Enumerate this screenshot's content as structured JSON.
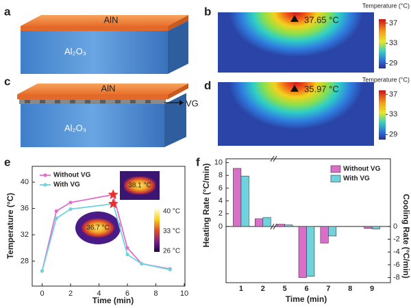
{
  "panels": {
    "a": {
      "label": "a",
      "top_layer": "AlN",
      "substrate": "Al₂O₃"
    },
    "b": {
      "label": "b",
      "legend_title": "Temperature (°C)",
      "annotation": "37.65 °C",
      "clim": [
        28.0,
        37.8
      ],
      "colorbar_ticks": [
        37,
        33,
        29
      ]
    },
    "c": {
      "label": "c",
      "top_layer": "AlN",
      "middle_layer": "VG",
      "substrate": "Al₂O₃"
    },
    "d": {
      "label": "d",
      "legend_title": "Temperature (°C)",
      "annotation": "35.97 °C",
      "clim": [
        28.0,
        37.8
      ],
      "colorbar_ticks": [
        37,
        33,
        29
      ]
    }
  },
  "chart_data": [
    {
      "type": "line",
      "label": "e",
      "x_label": "Time (min)",
      "y_label": "Temperature (°C)",
      "x": [
        0,
        1,
        2,
        5,
        6,
        7,
        9
      ],
      "series": [
        {
          "name": "Without VG",
          "color": "#e06fcb",
          "values": [
            26.5,
            35.6,
            36.9,
            38.1,
            30.0,
            27.6,
            26.8
          ]
        },
        {
          "name": "With VG",
          "color": "#6fd3dc",
          "values": [
            26.5,
            34.5,
            35.9,
            36.7,
            29.0,
            27.6,
            26.7
          ]
        }
      ],
      "xlim": [
        -0.7,
        10.05
      ],
      "xticks": [
        0,
        2,
        4,
        6,
        8,
        10
      ],
      "ylim": [
        24.2,
        42.4
      ],
      "yticks": [
        28,
        32,
        36,
        40
      ],
      "legend": "upper-left",
      "inset_annotations": [
        "38.1 °C",
        "36.7 °C"
      ],
      "inset_colorbar_labels": [
        "40 °C",
        "33 °C",
        "26 °C"
      ]
    },
    {
      "type": "bar",
      "label": "f",
      "x_label": "Time (min)",
      "y_label": "Heating Rate (°C/min)",
      "y2_label": "Cooling Rate (°C/min)",
      "categories": [
        "1",
        "2",
        "5",
        "6",
        "7",
        "8",
        "9"
      ],
      "series": [
        {
          "name": "Without VG",
          "color": "#d870c8",
          "values": [
            9.1,
            1.2,
            0.35,
            -8.0,
            -2.6,
            null,
            -0.3
          ]
        },
        {
          "name": "With VG",
          "color": "#70d2dc",
          "values": [
            7.9,
            1.4,
            0.25,
            -7.8,
            -1.5,
            null,
            -0.4
          ]
        }
      ],
      "ylim": [
        -8.8,
        10.6
      ],
      "yticks": [
        0,
        2,
        4,
        6,
        8,
        10
      ],
      "y2lim": [
        -8.8,
        10.6
      ],
      "y2ticks": [
        0,
        -2,
        -4,
        -6,
        -8
      ],
      "legend": "upper-right"
    }
  ]
}
